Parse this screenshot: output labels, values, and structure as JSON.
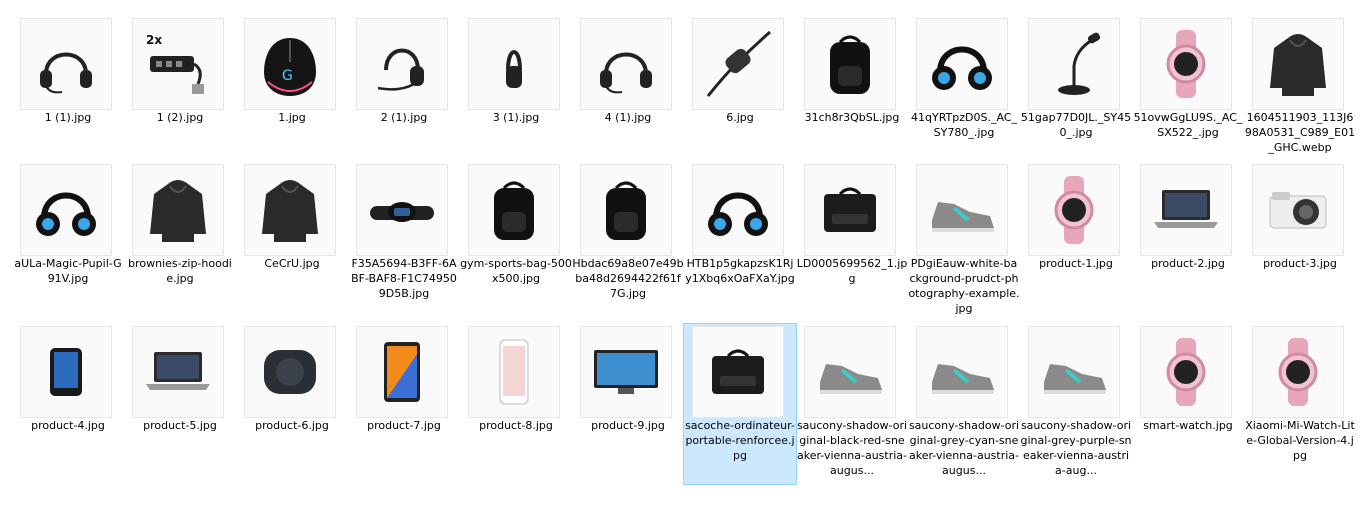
{
  "files": [
    {
      "name": "1 (1).jpg",
      "icon": "headset-icon"
    },
    {
      "name": "1 (2).jpg",
      "icon": "usb-hub-icon"
    },
    {
      "name": "1.jpg",
      "icon": "gaming-mouse-icon"
    },
    {
      "name": "2 (1).jpg",
      "icon": "mono-headset-icon"
    },
    {
      "name": "3 (1).jpg",
      "icon": "single-ear-headset-icon"
    },
    {
      "name": "4 (1).jpg",
      "icon": "headset-icon"
    },
    {
      "name": "6.jpg",
      "icon": "cable-controller-icon"
    },
    {
      "name": "31ch8r3QbSL.jpg",
      "icon": "backpack-icon"
    },
    {
      "name": "41qYRTpzD0S._AC_SY780_.jpg",
      "icon": "gaming-headset-icon"
    },
    {
      "name": "51gap77D0JL._SY450_.jpg",
      "icon": "desk-microphone-icon"
    },
    {
      "name": "51ovwGgLU9S._AC_SX522_.jpg",
      "icon": "smartwatch-icon"
    },
    {
      "name": "1604511903_113J698A0531_C989_E01_GHC.webp",
      "icon": "hoodie-icon"
    },
    {
      "name": "aULa-Magic-Pupil-G91V.jpg",
      "icon": "gaming-headset-icon"
    },
    {
      "name": "brownies-zip-hoodie.jpg",
      "icon": "hoodie-icon"
    },
    {
      "name": "CeCrU.jpg",
      "icon": "hoodie-icon"
    },
    {
      "name": "F35A5694-B3FF-6ABF-BAF8-F1C749509D5B.jpg",
      "icon": "fitness-band-icon"
    },
    {
      "name": "gym-sports-bag-500x500.jpg",
      "icon": "backpack-icon"
    },
    {
      "name": "Hbdac69a8e07e49bba48d2694422f61f7G.jpg",
      "icon": "backpack-icon"
    },
    {
      "name": "HTB1p5gkapzsK1Rjy1Xbq6xOaFXaY.jpg",
      "icon": "gaming-headset-icon"
    },
    {
      "name": "LD0005699562_1.jpg",
      "icon": "laptop-bag-icon"
    },
    {
      "name": "PDgiEauw-white-background-prudct-photography-example.jpg",
      "icon": "sneaker-icon"
    },
    {
      "name": "product-1.jpg",
      "icon": "smartwatch-icon"
    },
    {
      "name": "product-2.jpg",
      "icon": "laptop-icon"
    },
    {
      "name": "product-3.jpg",
      "icon": "camera-icon"
    },
    {
      "name": "product-4.jpg",
      "icon": "action-camera-icon"
    },
    {
      "name": "product-5.jpg",
      "icon": "laptop-icon"
    },
    {
      "name": "product-6.jpg",
      "icon": "speaker-icon"
    },
    {
      "name": "product-7.jpg",
      "icon": "tablet-icon"
    },
    {
      "name": "product-8.jpg",
      "icon": "phone-icon"
    },
    {
      "name": "product-9.jpg",
      "icon": "tv-icon"
    },
    {
      "name": "sacoche-ordinateur-portable-renforcee.jpg",
      "icon": "laptop-bag-icon",
      "selected": true
    },
    {
      "name": "saucony-shadow-original-black-red-sneaker-vienna-austria-augus...",
      "icon": "sneaker-icon"
    },
    {
      "name": "saucony-shadow-original-grey-cyan-sneaker-vienna-austria-augus...",
      "icon": "sneaker-icon"
    },
    {
      "name": "saucony-shadow-original-grey-purple-sneaker-vienna-austria-aug...",
      "icon": "sneaker-icon"
    },
    {
      "name": "smart-watch.jpg",
      "icon": "smartwatch-icon"
    },
    {
      "name": "Xiaomi-Mi-Watch-Lite-Global-Version-4.jpg",
      "icon": "smartwatch-icon"
    }
  ],
  "accent": "#cce8ff"
}
